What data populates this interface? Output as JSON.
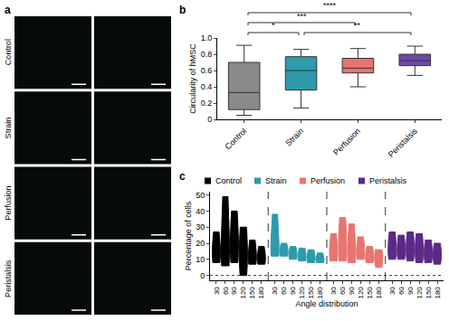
{
  "image_panel": {
    "letter": "a",
    "rows": [
      "Control",
      "Strain",
      "Perfusion",
      "Peristalsis"
    ]
  },
  "chart_data": [
    {
      "letter": "b",
      "type": "box",
      "y_label": "Circularity of hMSC",
      "categories": [
        "Control",
        "Strain",
        "Perfusion",
        "Peristalsis"
      ],
      "colors": [
        "#8a8a8a",
        "#2e9aab",
        "#e8756f",
        "#6f4aa8"
      ],
      "min": [
        0.05,
        0.14,
        0.4,
        0.54
      ],
      "q1": [
        0.12,
        0.36,
        0.57,
        0.66
      ],
      "median": [
        0.33,
        0.6,
        0.63,
        0.72
      ],
      "q3": [
        0.7,
        0.77,
        0.75,
        0.8
      ],
      "max": [
        0.91,
        0.86,
        0.87,
        0.9
      ],
      "ylim": [
        0,
        1
      ],
      "yticks": [
        0,
        0.2,
        0.4,
        0.6,
        0.8,
        {
          "value": 1,
          "label": "1.0"
        }
      ],
      "significance": [
        {
          "from": "Control",
          "to": "Strain",
          "label": "*"
        },
        {
          "from": "Strain",
          "to": "Peristalsis",
          "label": "**"
        },
        {
          "from": "Control",
          "to": "Perfusion",
          "label": "***"
        },
        {
          "from": "Control",
          "to": "Peristalsis",
          "label": "****"
        }
      ]
    },
    {
      "letter": "c",
      "type": "violin",
      "x_label": "Angle distribution",
      "y_label": "Percentage of cells",
      "categories": [
        30,
        60,
        90,
        120,
        150,
        180
      ],
      "series": [
        {
          "name": "Control",
          "color": "#000000",
          "min": [
            8,
            6,
            8,
            0,
            7,
            7
          ],
          "median": [
            15,
            18,
            20,
            14,
            12,
            11
          ],
          "max": [
            27,
            49,
            40,
            30,
            22,
            18
          ]
        },
        {
          "name": "Strain",
          "color": "#2e9aab",
          "min": [
            12,
            12,
            10,
            9,
            8,
            8
          ],
          "median": [
            18,
            15,
            13,
            12,
            11,
            10
          ],
          "max": [
            38,
            20,
            18,
            17,
            16,
            14
          ]
        },
        {
          "name": "Perfusion",
          "color": "#e8756f",
          "min": [
            9,
            9,
            8,
            10,
            8,
            5
          ],
          "median": [
            15,
            20,
            15,
            15,
            12,
            11
          ],
          "max": [
            26,
            36,
            32,
            24,
            18,
            16
          ]
        },
        {
          "name": "Peristalsis",
          "color": "#5b2a86",
          "min": [
            10,
            10,
            9,
            8,
            8,
            7
          ],
          "median": [
            17,
            16,
            17,
            16,
            14,
            13
          ],
          "max": [
            27,
            25,
            27,
            26,
            22,
            20
          ]
        }
      ],
      "ylim": [
        -3,
        52
      ],
      "yticks": [
        0,
        10,
        20,
        30,
        40,
        50
      ],
      "reference_line": 0,
      "legend": "top"
    }
  ]
}
